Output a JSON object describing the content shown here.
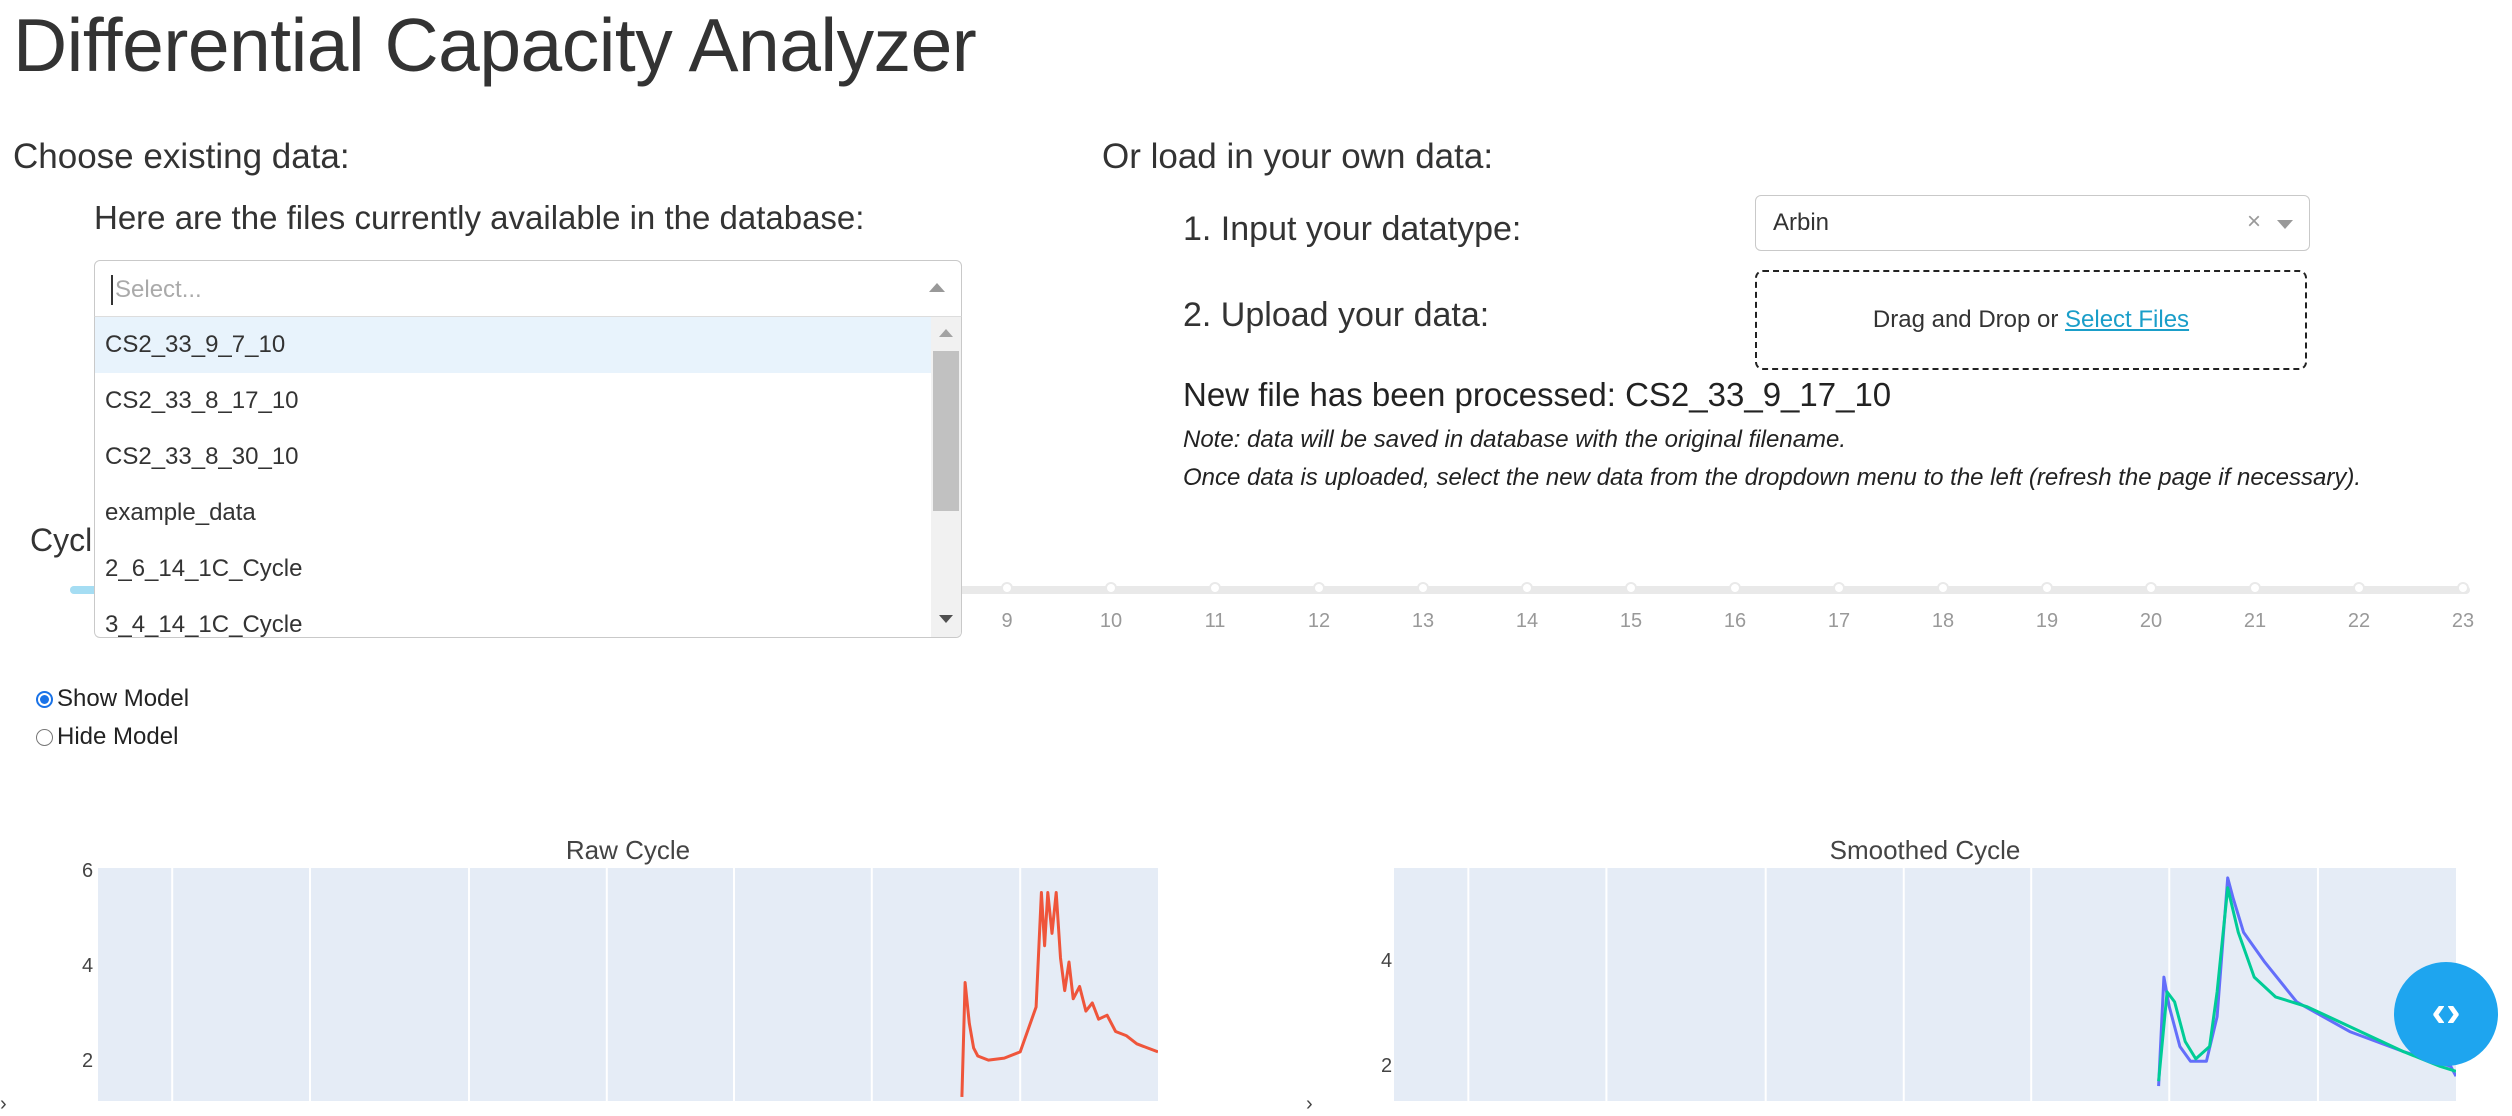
{
  "header": {
    "title": "Differential Capacity Analyzer"
  },
  "existing": {
    "section_label": "Choose existing data:",
    "files_label": "Here are the files currently available in the database:",
    "select_placeholder": "Select...",
    "options": [
      "CS2_33_9_7_10",
      "CS2_33_8_17_10",
      "CS2_33_8_30_10",
      "example_data",
      "2_6_14_1C_Cycle",
      "3_4_14_1C_Cycle"
    ]
  },
  "upload": {
    "section_label": "Or load in your own data:",
    "step1": "1. Input your datatype:",
    "datatype_value": "Arbin",
    "clear_glyph": "×",
    "step2": "2. Upload your data:",
    "drop_text": "Drag and Drop or ",
    "select_files": "Select Files",
    "processed": "New file has been processed: CS2_33_9_17_10",
    "note1": "Note: data will be saved in database with the original filename.",
    "note2": "Once data is uploaded, select the new data from the dropdown menu to the left (refresh the page if necessary)."
  },
  "slider": {
    "label_fragment": "Cycl",
    "visible_marks": [
      "9",
      "10",
      "11",
      "12",
      "13",
      "14",
      "15",
      "16",
      "17",
      "18",
      "19",
      "20",
      "21",
      "22",
      "23"
    ],
    "selected_value": 1
  },
  "model_toggle": {
    "options": [
      "Show Model",
      "Hide Model"
    ],
    "selected": "Show Model"
  },
  "fab": {
    "icon": "code-brackets-icon",
    "glyph": "‹›"
  },
  "colors": {
    "raw_series": "#ef553b",
    "model_series": "#636efa",
    "smoothed_series": "#00cc96",
    "plot_bg": "#e5ecf6",
    "accent": "#1ea5ef"
  },
  "chart_data": [
    {
      "type": "line",
      "title": "Raw Cycle",
      "ytick_labels": [
        "6",
        "4",
        "2"
      ],
      "ylim": [
        0.5,
        6.2
      ],
      "xlim": [
        0,
        1
      ],
      "series": [
        {
          "color": "#ef553b",
          "points": [
            [
              0.815,
              0.6
            ],
            [
              0.818,
              3.4
            ],
            [
              0.822,
              2.4
            ],
            [
              0.826,
              1.8
            ],
            [
              0.83,
              1.6
            ],
            [
              0.84,
              1.5
            ],
            [
              0.855,
              1.55
            ],
            [
              0.87,
              1.7
            ],
            [
              0.885,
              2.8
            ],
            [
              0.89,
              5.6
            ],
            [
              0.893,
              4.3
            ],
            [
              0.896,
              5.6
            ],
            [
              0.9,
              4.6
            ],
            [
              0.904,
              5.6
            ],
            [
              0.908,
              4.0
            ],
            [
              0.912,
              3.2
            ],
            [
              0.916,
              3.9
            ],
            [
              0.92,
              3.0
            ],
            [
              0.926,
              3.3
            ],
            [
              0.932,
              2.7
            ],
            [
              0.938,
              2.9
            ],
            [
              0.944,
              2.5
            ],
            [
              0.952,
              2.6
            ],
            [
              0.96,
              2.2
            ],
            [
              0.97,
              2.1
            ],
            [
              0.98,
              1.9
            ],
            [
              0.99,
              1.8
            ],
            [
              1.0,
              1.7
            ]
          ]
        }
      ]
    },
    {
      "type": "line",
      "title": "Smoothed Cycle",
      "ytick_labels": [
        "4",
        "2"
      ],
      "ylim": [
        0.5,
        5.2
      ],
      "xlim": [
        0,
        1
      ],
      "series": [
        {
          "color": "#636efa",
          "points": [
            [
              0.72,
              0.8
            ],
            [
              0.725,
              3.0
            ],
            [
              0.73,
              2.4
            ],
            [
              0.74,
              1.6
            ],
            [
              0.75,
              1.3
            ],
            [
              0.765,
              1.3
            ],
            [
              0.775,
              2.2
            ],
            [
              0.78,
              3.6
            ],
            [
              0.785,
              5.0
            ],
            [
              0.79,
              4.6
            ],
            [
              0.8,
              3.9
            ],
            [
              0.82,
              3.3
            ],
            [
              0.85,
              2.5
            ],
            [
              0.9,
              1.9
            ],
            [
              0.95,
              1.5
            ],
            [
              0.995,
              1.2
            ],
            [
              1.0,
              1.0
            ]
          ]
        },
        {
          "color": "#00cc96",
          "points": [
            [
              0.72,
              0.9
            ],
            [
              0.728,
              2.7
            ],
            [
              0.735,
              2.5
            ],
            [
              0.745,
              1.7
            ],
            [
              0.755,
              1.35
            ],
            [
              0.768,
              1.6
            ],
            [
              0.775,
              2.7
            ],
            [
              0.785,
              4.8
            ],
            [
              0.795,
              3.9
            ],
            [
              0.81,
              3.0
            ],
            [
              0.83,
              2.6
            ],
            [
              0.86,
              2.4
            ],
            [
              0.9,
              2.0
            ],
            [
              0.95,
              1.5
            ],
            [
              0.985,
              1.2
            ],
            [
              1.0,
              1.1
            ]
          ]
        }
      ]
    }
  ]
}
